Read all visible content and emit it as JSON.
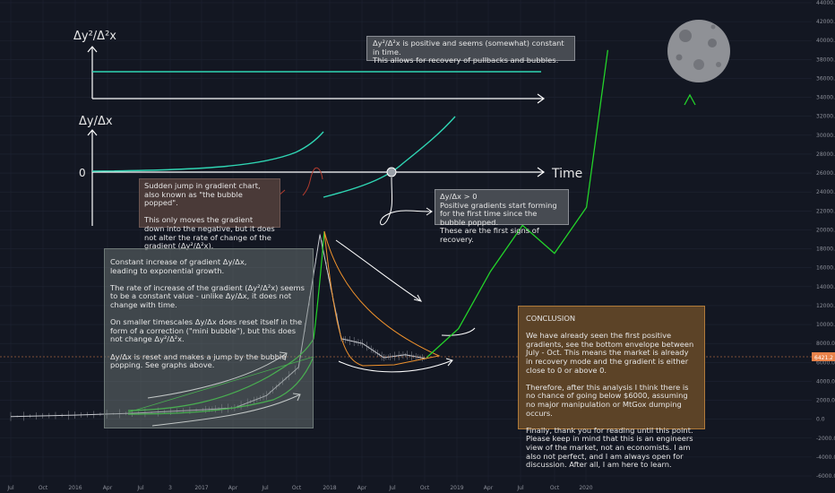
{
  "colors": {
    "background": "#131722",
    "grid": "#1f2433",
    "axis_text": "#8c8f99",
    "teal": "#2fd5b3",
    "green": "#23d32a",
    "orange": "#f0922c",
    "price_tag": "#e8824a"
  },
  "chart_data": {
    "type": "line",
    "price_tag": "6421.2",
    "y_ticks": [
      "44000.0",
      "42000.0",
      "40000.0",
      "38000.0",
      "36000.0",
      "34000.0",
      "32000.0",
      "30000.0",
      "28000.0",
      "26000.0",
      "24000.0",
      "22000.0",
      "20000.0",
      "18000.0",
      "16000.0",
      "14000.0",
      "12000.0",
      "10000.0",
      "8000.0",
      "6000.0",
      "4000.0",
      "2000.0",
      "0.0",
      "-2000.0",
      "-4000.0",
      "-6000.0"
    ],
    "x_ticks": [
      "Jul",
      "Oct",
      "2016",
      "Apr",
      "Jul",
      "3",
      "2017",
      "Apr",
      "Jul",
      "Oct",
      "2018",
      "Apr",
      "Jul",
      "Oct",
      "2019",
      "Apr",
      "Jul",
      "Oct",
      "2020"
    ],
    "price_series": {
      "x": [
        "2015-07",
        "2016-01",
        "2016-07",
        "2017-01",
        "2017-04",
        "2017-07",
        "2017-10",
        "2017-12",
        "2018-02",
        "2018-04",
        "2018-06",
        "2018-08",
        "2018-10"
      ],
      "y": [
        280,
        430,
        650,
        1000,
        1200,
        2500,
        5500,
        19500,
        8500,
        8000,
        6500,
        6800,
        6400
      ]
    },
    "projection_series": {
      "x": [
        "2018-10",
        "2019-01",
        "2019-04",
        "2019-07",
        "2019-10",
        "2020-01",
        "2020-03"
      ],
      "y": [
        6500,
        9000,
        16000,
        20000,
        18000,
        22000,
        39000
      ]
    },
    "diagram_top": {
      "ylabel": "Δy²/Δ²x",
      "note": "Δy²/Δ²x is positive and seems (somewhat) constant in time.\nThis allows for recovery of pullbacks and bubbles."
    },
    "diagram_middle": {
      "ylabel": "Δy/Δx",
      "zero_label": "0",
      "xlabel": "Time"
    }
  },
  "notes": {
    "bubble": "Sudden jump in gradient chart, also known as \"the bubble popped\".\n\nThis only moves the gradient down into the negative, but it does not alter the rate of change of the gradient (Δy²/Δ²x).",
    "recovery": "Δy/Δx > 0\nPositive gradients start forming for the first time since the bubble popped.\nThese are the first signs of recovery.",
    "growth": "Constant increase of gradient Δy/Δx,\nleading to exponential growth.\n\nThe rate of increase of the gradient (Δy²/Δ²x) seems to be a constant value - unlike Δy/Δx, it does not change with time.\n\nOn smaller timescales Δy/Δx does reset itself in the form of a correction (\"mini bubble\"), but this does not change Δy²/Δ²x.\n\nΔy/Δx is reset and makes a jump by the bubble popping. See graphs above.",
    "conclusion": "CONCLUSION\n\nWe have already seen the first positive gradients, see the bottom envelope between July - Oct. This means the market is already in recovery mode and the gradient is either close to 0 or above 0.\n\nTherefore, after this analysis I think there is no chance of going below $6000, assuming no major manipulation or MtGox dumping occurs.\n\nFinally, thank you for reading until this point. Please keep in mind that this is an engineers view of the market, not an economists. I am also not perfect, and I am always open for discussion. After all, I am here to learn."
  }
}
